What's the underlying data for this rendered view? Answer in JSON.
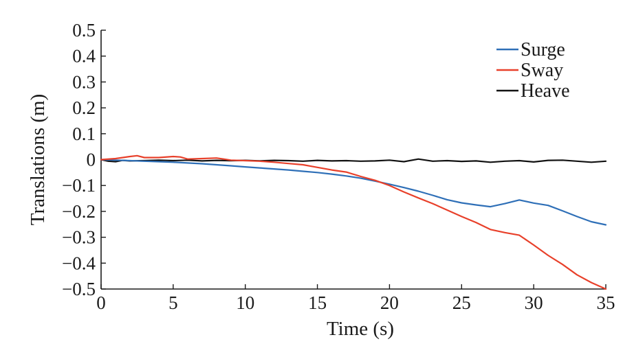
{
  "chart_data": {
    "type": "line",
    "title": "",
    "xlabel": "Time (s)",
    "ylabel": "Translations (m)",
    "xlim": [
      0,
      35
    ],
    "ylim": [
      -0.5,
      0.5
    ],
    "xticks": [
      0,
      5,
      10,
      15,
      20,
      25,
      30,
      35
    ],
    "yticks": [
      0.5,
      0.4,
      0.3,
      0.2,
      0.1,
      0,
      -0.1,
      -0.2,
      -0.3,
      -0.4,
      -0.5
    ],
    "xtick_labels": [
      "0",
      "5",
      "10",
      "15",
      "20",
      "25",
      "30",
      "35"
    ],
    "ytick_labels": [
      "0.5",
      "0.4",
      "0.3",
      "0.2",
      "0.1",
      "0",
      "−0.1",
      "−0.2",
      "−0.3",
      "−0.4",
      "−0.5"
    ],
    "grid": false,
    "legend_position": "top-right",
    "series": [
      {
        "name": "Surge",
        "color": "#2e6fb7",
        "x": [
          0,
          1,
          2,
          3,
          4,
          5,
          6,
          7,
          8,
          9,
          10,
          11,
          12,
          13,
          14,
          15,
          16,
          17,
          18,
          19,
          20,
          21,
          22,
          23,
          24,
          25,
          26,
          27,
          28,
          29,
          30,
          31,
          32,
          33,
          34,
          35
        ],
        "y": [
          0,
          -0.002,
          -0.004,
          -0.006,
          -0.008,
          -0.01,
          -0.013,
          -0.016,
          -0.02,
          -0.024,
          -0.028,
          -0.032,
          -0.036,
          -0.04,
          -0.045,
          -0.05,
          -0.056,
          -0.063,
          -0.072,
          -0.083,
          -0.095,
          -0.108,
          -0.122,
          -0.138,
          -0.155,
          -0.167,
          -0.175,
          -0.182,
          -0.17,
          -0.156,
          -0.168,
          -0.177,
          -0.198,
          -0.22,
          -0.24,
          -0.252
        ]
      },
      {
        "name": "Sway",
        "color": "#e8402a",
        "x": [
          0,
          1,
          2,
          2.5,
          3,
          4,
          5,
          5.5,
          6,
          7,
          8,
          8.5,
          9,
          10,
          11,
          12,
          13,
          14,
          15,
          16,
          17,
          18,
          19,
          20,
          21,
          22,
          23,
          24,
          25,
          26,
          27,
          28,
          29,
          30,
          31,
          32,
          33,
          34,
          35
        ],
        "y": [
          0,
          0.004,
          0.012,
          0.015,
          0.008,
          0.008,
          0.012,
          0.01,
          0.002,
          0.004,
          0.006,
          0.002,
          -0.002,
          -0.004,
          -0.006,
          -0.01,
          -0.015,
          -0.02,
          -0.03,
          -0.04,
          -0.048,
          -0.065,
          -0.08,
          -0.1,
          -0.125,
          -0.148,
          -0.17,
          -0.195,
          -0.22,
          -0.243,
          -0.27,
          -0.282,
          -0.292,
          -0.33,
          -0.37,
          -0.405,
          -0.445,
          -0.475,
          -0.5
        ]
      },
      {
        "name": "Heave",
        "color": "#111111",
        "x": [
          0,
          0.5,
          1,
          1.5,
          2,
          3,
          4,
          5,
          6,
          7,
          8,
          9,
          10,
          11,
          12,
          13,
          14,
          15,
          16,
          17,
          18,
          19,
          20,
          21,
          22,
          23,
          24,
          25,
          26,
          27,
          28,
          29,
          30,
          31,
          32,
          33,
          34,
          35
        ],
        "y": [
          0,
          -0.006,
          -0.008,
          -0.003,
          -0.005,
          -0.004,
          -0.002,
          -0.004,
          -0.002,
          -0.005,
          -0.003,
          -0.004,
          -0.003,
          -0.005,
          -0.003,
          -0.004,
          -0.006,
          -0.003,
          -0.005,
          -0.004,
          -0.006,
          -0.005,
          -0.002,
          -0.008,
          0.002,
          -0.006,
          -0.004,
          -0.007,
          -0.005,
          -0.01,
          -0.006,
          -0.004,
          -0.009,
          -0.003,
          -0.002,
          -0.006,
          -0.01,
          -0.006
        ]
      }
    ]
  }
}
